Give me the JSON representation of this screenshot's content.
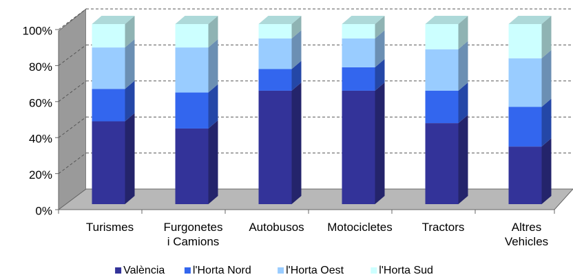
{
  "chart_data": {
    "type": "bar3d-stacked",
    "categories": [
      "Turismes",
      "Furgonetes\ni Camions",
      "Autobusos",
      "Motocicletes",
      "Tractors",
      "Altres\nVehicles"
    ],
    "series": [
      {
        "name": "València",
        "color": "#333399",
        "values": [
          46,
          42,
          63,
          63,
          45,
          32
        ]
      },
      {
        "name": "l'Horta Nord",
        "color": "#3366ee",
        "values": [
          18,
          20,
          12,
          13,
          18,
          22
        ]
      },
      {
        "name": "l'Horta Oest",
        "color": "#99ccff",
        "values": [
          23,
          25,
          17,
          16,
          23,
          27
        ]
      },
      {
        "name": "l'Horta Sud",
        "color": "#ccffff",
        "values": [
          13,
          13,
          8,
          8,
          14,
          19
        ]
      }
    ],
    "ylim": [
      0,
      100
    ],
    "yticks": [
      {
        "value": 0,
        "label": "0%"
      },
      {
        "value": 20,
        "label": "20%"
      },
      {
        "value": 40,
        "label": "40%"
      },
      {
        "value": 60,
        "label": "60%"
      },
      {
        "value": 80,
        "label": "80%"
      },
      {
        "value": 100,
        "label": "100%"
      }
    ],
    "grid": true
  }
}
